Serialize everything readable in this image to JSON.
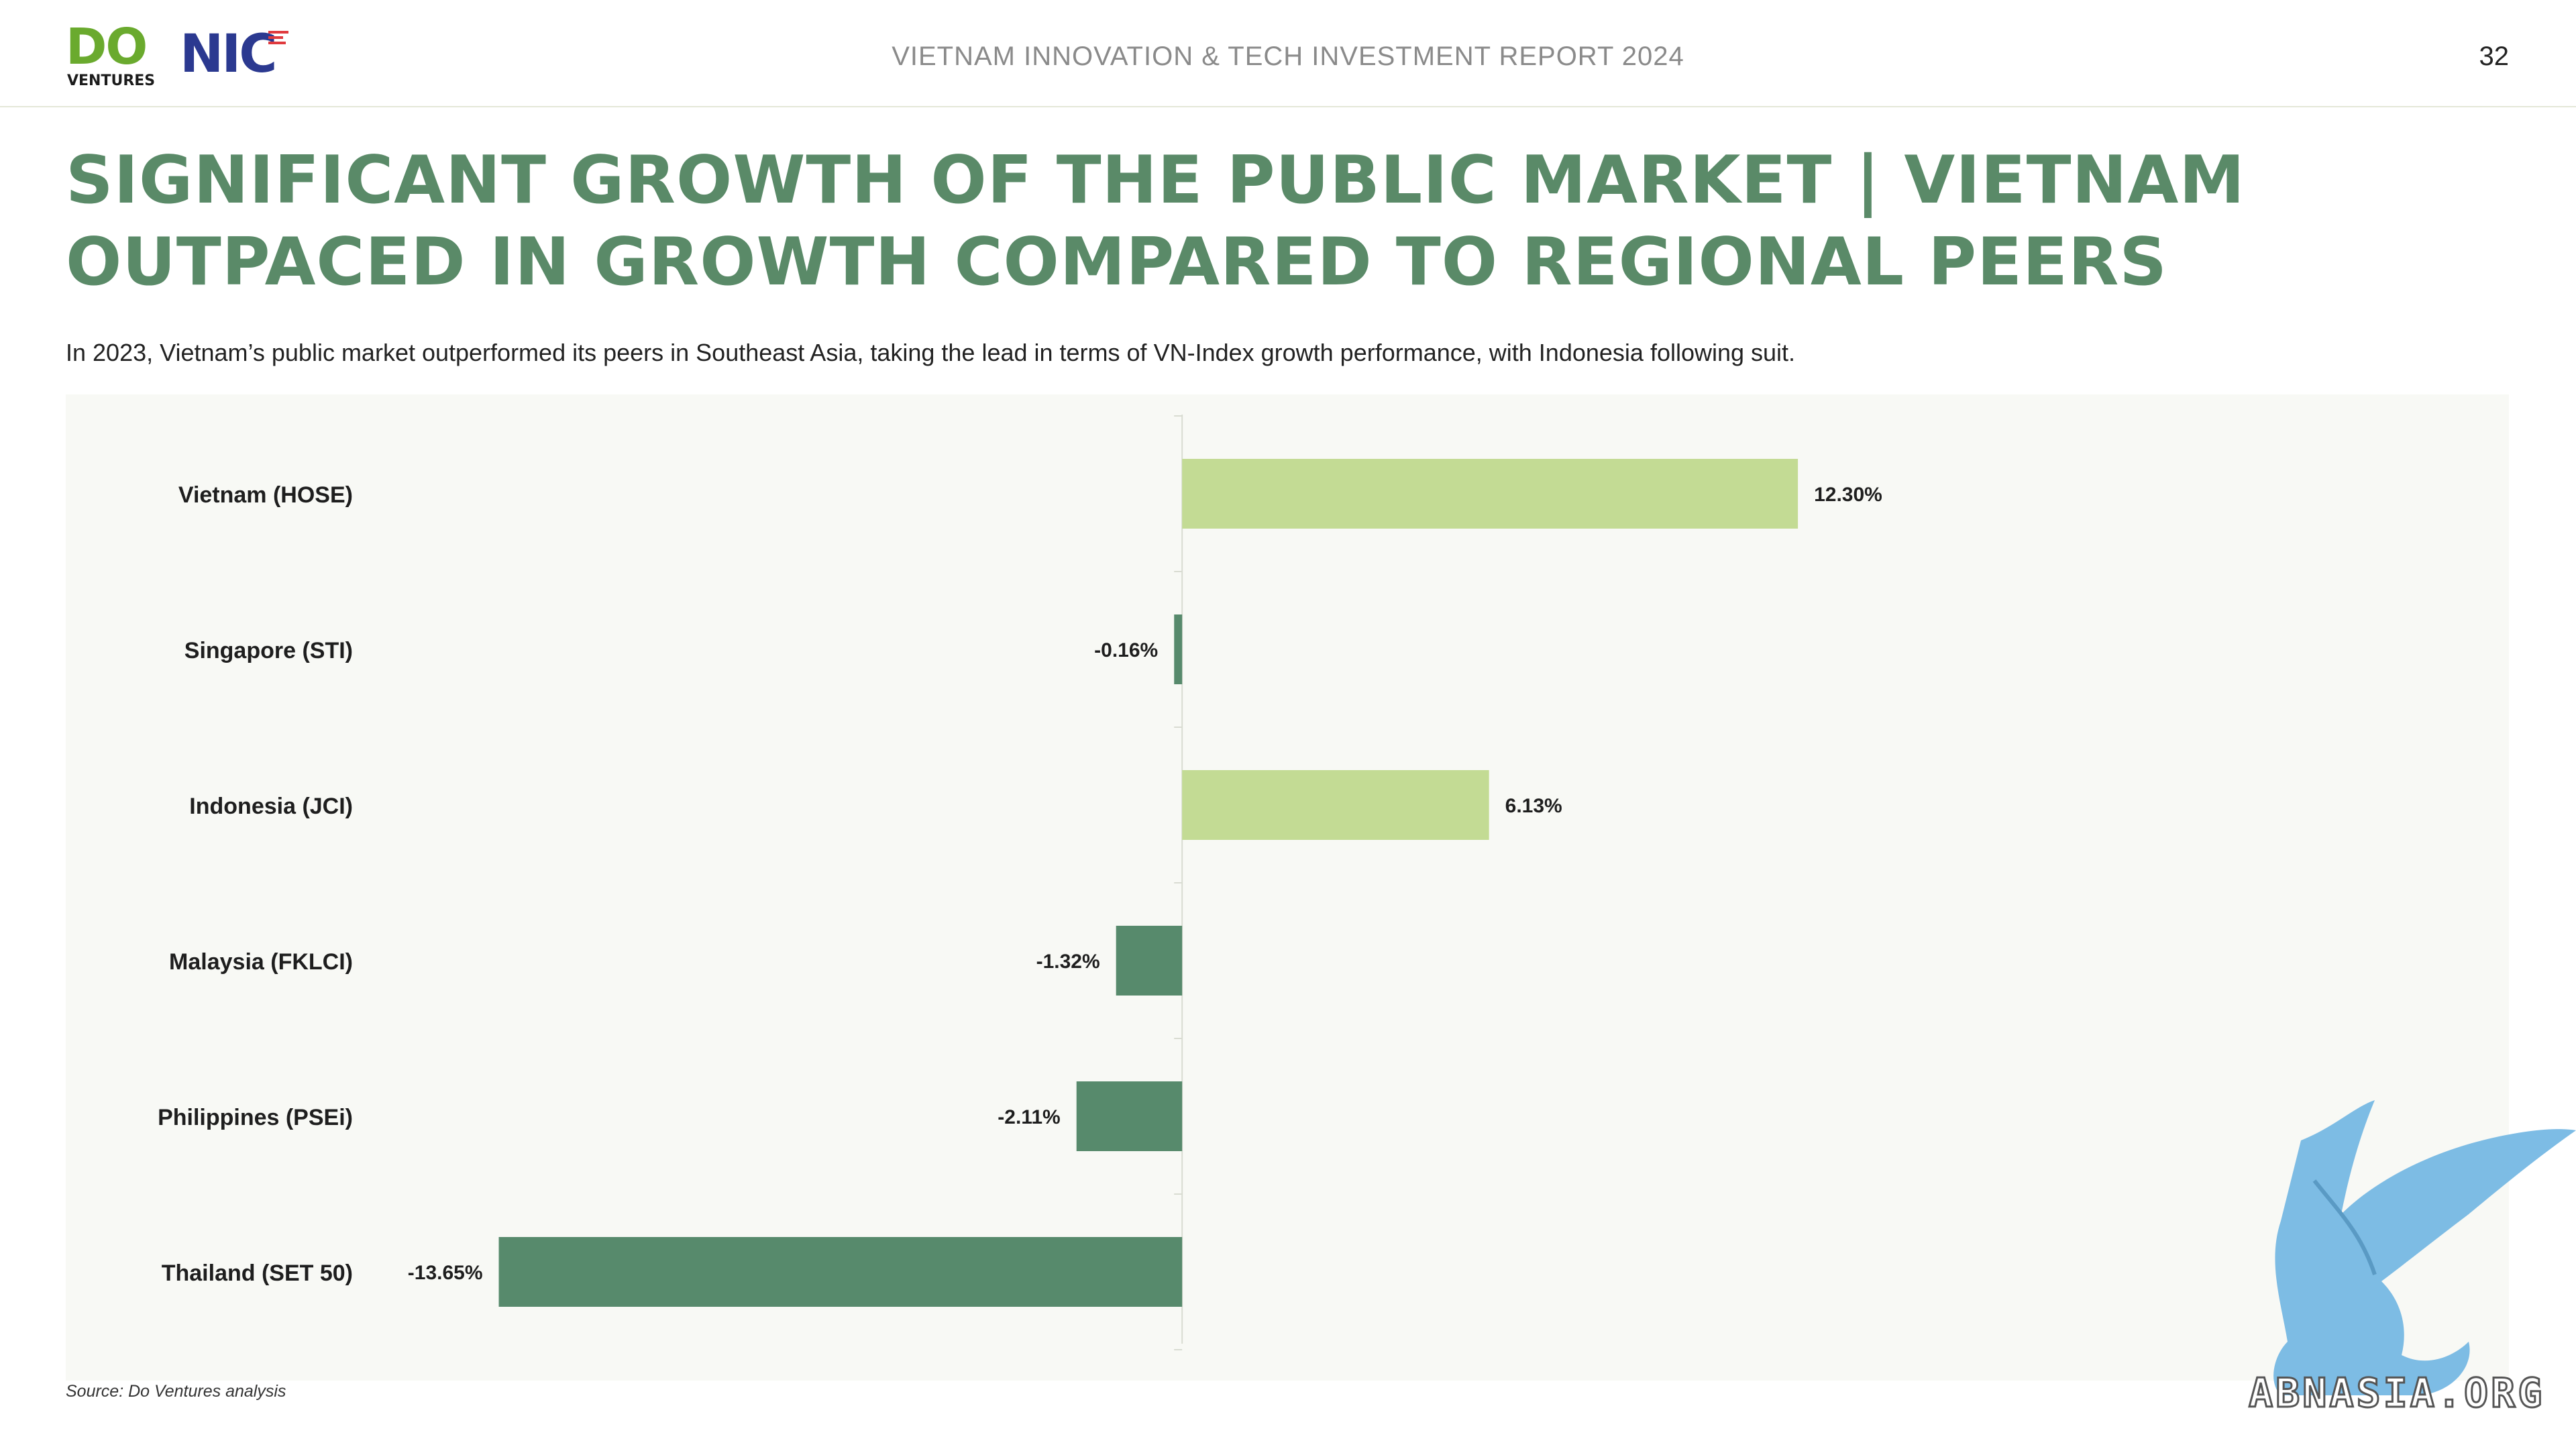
{
  "header": {
    "logo_do": "DO",
    "logo_do_sub": "VENTURES",
    "logo_nic": "NIC",
    "report_title": "VIETNAM INNOVATION & TECH INVESTMENT REPORT 2024",
    "page_number": "32"
  },
  "title": "SIGNIFICANT GROWTH OF THE PUBLIC MARKET | VIETNAM OUTPACED IN GROWTH COMPARED TO REGIONAL PEERS",
  "subtitle": "In 2023, Vietnam’s public market outperformed its peers in Southeast Asia, taking the lead in terms of VN-Index growth performance, with Indonesia following suit.",
  "source": "Source: Do Ventures analysis",
  "watermark": "ABNASIA.ORG",
  "colors": {
    "positive": "#c3db94",
    "negative": "#578a6c",
    "title": "#5a8a68",
    "panel": "#f8f9f5"
  },
  "chart_data": {
    "type": "bar",
    "orientation": "horizontal",
    "categories": [
      "Vietnam (HOSE)",
      "Singapore (STI)",
      "Indonesia (JCI)",
      "Malaysia (FKLCI)",
      "Philippines (PSEi)",
      "Thailand (SET 50)"
    ],
    "values": [
      12.3,
      -0.16,
      6.13,
      -1.32,
      -2.11,
      -13.65
    ],
    "value_labels": [
      "12.30%",
      "-0.16%",
      "6.13%",
      "-1.32%",
      "-2.11%",
      "-13.65%"
    ],
    "unit": "%",
    "xlim": [
      -15.6,
      24.6
    ],
    "grid": false,
    "legend": "none"
  }
}
